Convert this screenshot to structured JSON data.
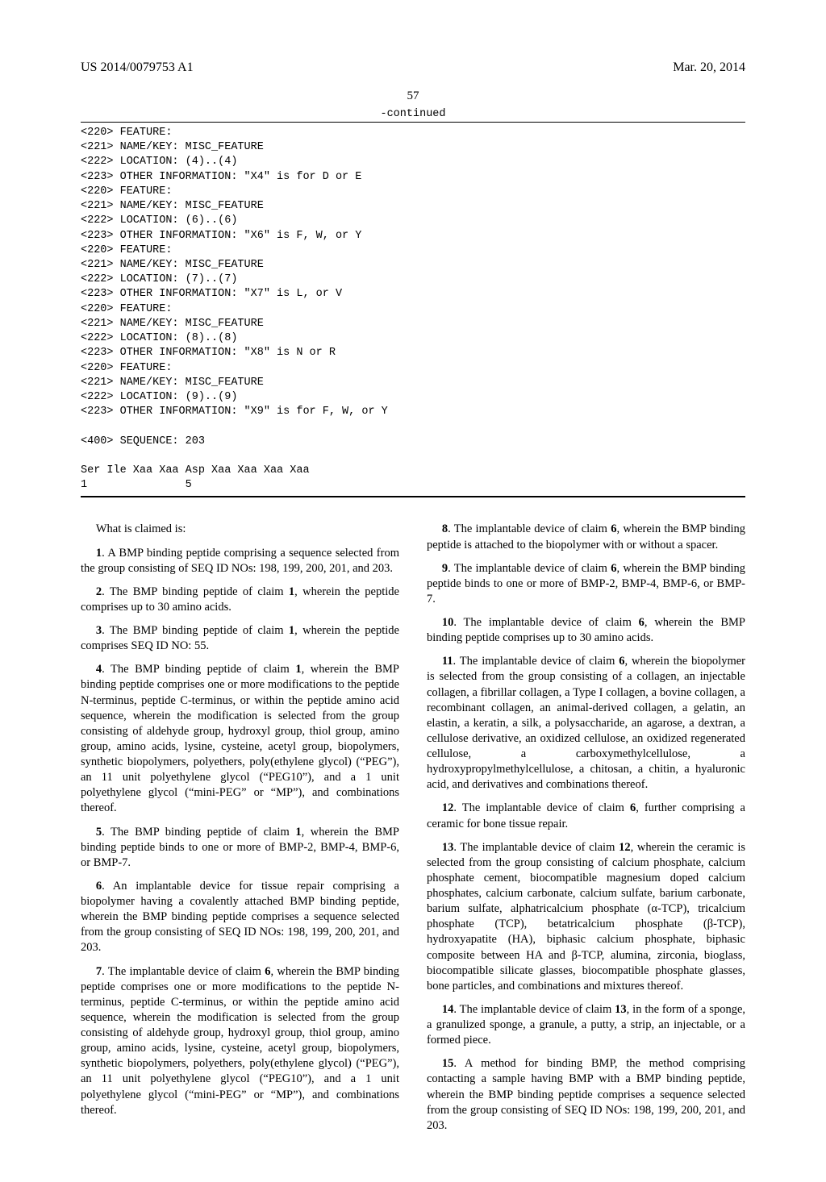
{
  "header": {
    "pubno": "US 2014/0079753 A1",
    "date": "Mar. 20, 2014"
  },
  "page_number_top": "57",
  "continued_label": "-continued",
  "sequence_block": "<220> FEATURE:\n<221> NAME/KEY: MISC_FEATURE\n<222> LOCATION: (4)..(4)\n<223> OTHER INFORMATION: \"X4\" is for D or E\n<220> FEATURE:\n<221> NAME/KEY: MISC_FEATURE\n<222> LOCATION: (6)..(6)\n<223> OTHER INFORMATION: \"X6\" is F, W, or Y\n<220> FEATURE:\n<221> NAME/KEY: MISC_FEATURE\n<222> LOCATION: (7)..(7)\n<223> OTHER INFORMATION: \"X7\" is L, or V\n<220> FEATURE:\n<221> NAME/KEY: MISC_FEATURE\n<222> LOCATION: (8)..(8)\n<223> OTHER INFORMATION: \"X8\" is N or R\n<220> FEATURE:\n<221> NAME/KEY: MISC_FEATURE\n<222> LOCATION: (9)..(9)\n<223> OTHER INFORMATION: \"X9\" is for F, W, or Y\n\n<400> SEQUENCE: 203\n\nSer Ile Xaa Xaa Asp Xaa Xaa Xaa Xaa\n1               5",
  "claims_intro": "What is claimed is:",
  "claims": {
    "c1": {
      "num": "1",
      "text": ". A BMP binding peptide comprising a sequence selected from the group consisting of SEQ ID NOs: 198, 199, 200, 201, and 203."
    },
    "c2": {
      "num": "2",
      "text": ". The BMP binding peptide of claim ",
      "ref": "1",
      "tail": ", wherein the peptide comprises up to 30 amino acids."
    },
    "c3": {
      "num": "3",
      "text": ". The BMP binding peptide of claim ",
      "ref": "1",
      "tail": ", wherein the peptide comprises SEQ ID NO: 55."
    },
    "c4": {
      "num": "4",
      "text": ". The BMP binding peptide of claim ",
      "ref": "1",
      "tail": ", wherein the BMP binding peptide comprises one or more modifications to the peptide N-terminus, peptide C-terminus, or within the peptide amino acid sequence, wherein the modification is selected from the group consisting of aldehyde group, hydroxyl group, thiol group, amino group, amino acids, lysine, cysteine, acetyl group, biopolymers, synthetic biopolymers, polyethers, poly(ethylene glycol) (“PEG”), an 11 unit polyethylene glycol (“PEG10”), and a 1 unit polyethylene glycol (“mini-PEG” or “MP”), and combinations thereof."
    },
    "c5": {
      "num": "5",
      "text": ". The BMP binding peptide of claim ",
      "ref": "1",
      "tail": ", wherein the BMP binding peptide binds to one or more of BMP-2, BMP-4, BMP-6, or BMP-7."
    },
    "c6": {
      "num": "6",
      "text": ". An implantable device for tissue repair comprising a biopolymer having a covalently attached BMP binding peptide, wherein the BMP binding peptide comprises a sequence selected from the group consisting of SEQ ID NOs: 198, 199, 200, 201, and 203."
    },
    "c7": {
      "num": "7",
      "text": ". The implantable device of claim ",
      "ref": "6",
      "tail": ", wherein the BMP binding peptide comprises one or more modifications to the peptide N-terminus, peptide C-terminus, or within the peptide amino acid sequence, wherein the modification is selected from the group consisting of aldehyde group, hydroxyl group, thiol group, amino group, amino acids, lysine, cysteine, acetyl group, biopolymers, synthetic biopolymers, polyethers, poly(ethylene glycol) (“PEG”), an 11 unit polyethylene glycol (“PEG10”), and a 1 unit polyethylene glycol (“mini-PEG” or “MP”), and combinations thereof."
    },
    "c8": {
      "num": "8",
      "text": ". The implantable device of claim ",
      "ref": "6",
      "tail": ", wherein the BMP binding peptide is attached to the biopolymer with or without a spacer."
    },
    "c9": {
      "num": "9",
      "text": ". The implantable device of claim ",
      "ref": "6",
      "tail": ", wherein the BMP binding peptide binds to one or more of BMP-2, BMP-4, BMP-6, or BMP-7."
    },
    "c10": {
      "num": "10",
      "text": ". The implantable device of claim ",
      "ref": "6",
      "tail": ", wherein the BMP binding peptide comprises up to 30 amino acids."
    },
    "c11": {
      "num": "11",
      "text": ". The implantable device of claim ",
      "ref": "6",
      "tail": ", wherein the biopolymer is selected from the group consisting of a collagen, an injectable collagen, a fibrillar collagen, a Type I collagen, a bovine collagen, a recombinant collagen, an animal-derived collagen, a gelatin, an elastin, a keratin, a silk, a polysaccharide, an agarose, a dextran, a cellulose derivative, an oxidized cellulose, an oxidized regenerated cellulose, a carboxymethylcellulose, a hydroxypropylmethylcellulose, a chitosan, a chitin, a hyaluronic acid, and derivatives and combinations thereof."
    },
    "c12": {
      "num": "12",
      "text": ". The implantable device of claim ",
      "ref": "6",
      "tail": ", further comprising a ceramic for bone tissue repair."
    },
    "c13": {
      "num": "13",
      "text": ". The implantable device of claim ",
      "ref": "12",
      "tail": ", wherein the ceramic is selected from the group consisting of calcium phosphate, calcium phosphate cement, biocompatible magnesium doped calcium phosphates, calcium carbonate, calcium sulfate, barium carbonate, barium sulfate, alphatricalcium phosphate (α-TCP), tricalcium phosphate (TCP), betatricalcium phosphate (β-TCP), hydroxyapatite (HA), biphasic calcium phosphate, biphasic composite between HA and β-TCP, alumina, zirconia, bioglass, biocompatible silicate glasses, biocompatible phosphate glasses, bone particles, and combinations and mixtures thereof."
    },
    "c14": {
      "num": "14",
      "text": ". The implantable device of claim ",
      "ref": "13",
      "tail": ", in the form of a sponge, a granulized sponge, a granule, a putty, a strip, an injectable, or a formed piece."
    },
    "c15": {
      "num": "15",
      "text": ". A method for binding BMP, the method comprising contacting a sample having BMP with a BMP binding peptide, wherein the BMP binding peptide comprises a sequence selected from the group consisting of SEQ ID NOs: 198, 199, 200, 201, and 203."
    }
  }
}
